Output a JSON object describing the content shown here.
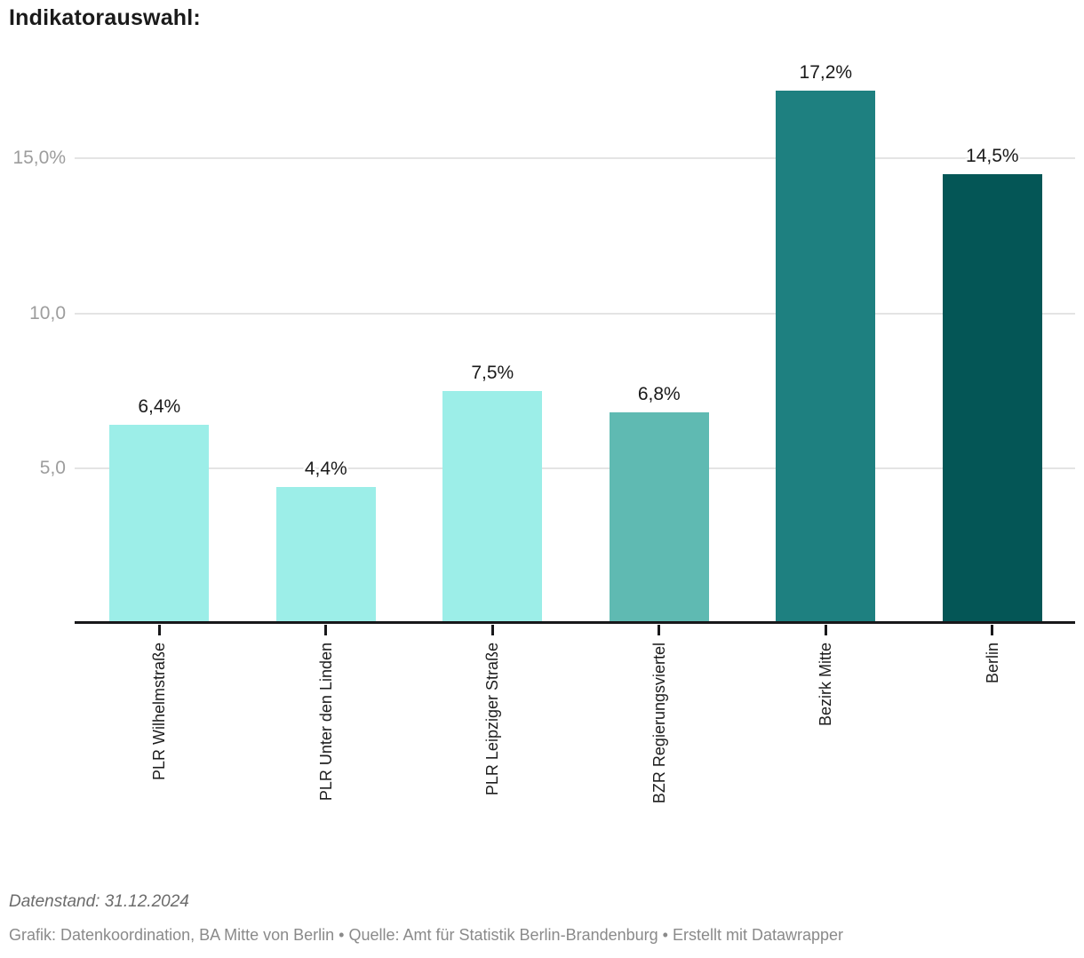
{
  "chart_data": {
    "type": "bar",
    "title": "Indikatorauswahl:",
    "categories": [
      "PLR Wilhelmstraße",
      "PLR Unter den Linden",
      "PLR Leipziger Straße",
      "BZR Regierungsviertel",
      "Bezirk Mitte",
      "Berlin"
    ],
    "values": [
      6.4,
      4.4,
      7.5,
      6.8,
      17.2,
      14.5
    ],
    "value_labels": [
      "6,4%",
      "4,4%",
      "7,5%",
      "6,8%",
      "17,2%",
      "14,5%"
    ],
    "bar_colors": [
      "#9CEEE8",
      "#9CEEE8",
      "#9CEEE8",
      "#5FBAB2",
      "#1E8080",
      "#045656"
    ],
    "y_ticks": [
      {
        "value": 5,
        "label": "5,0"
      },
      {
        "value": 10,
        "label": "10,0"
      },
      {
        "value": 15,
        "label": "15,0%"
      }
    ],
    "xlabel": "",
    "ylabel": "",
    "ylim": [
      0,
      17.5
    ],
    "grid": true,
    "legend": "none"
  },
  "footer": {
    "datenstand": "Datenstand: 31.12.2024",
    "attribution": "Grafik: Datenkoordination, BA Mitte von Berlin • Quelle: Amt für Statistik Berlin-Brandenburg • Erstellt mit Datawrapper"
  }
}
